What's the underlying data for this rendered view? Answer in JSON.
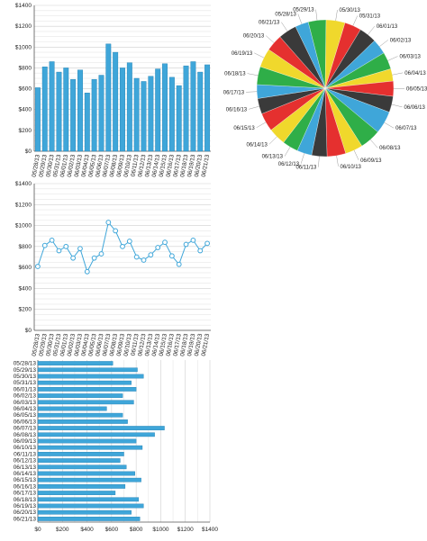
{
  "chart_data": [
    {
      "type": "bar",
      "orientation": "vertical",
      "categories": [
        "05/28/13",
        "05/29/13",
        "05/30/13",
        "05/31/13",
        "06/01/13",
        "06/02/13",
        "06/03/13",
        "06/04/13",
        "06/05/13",
        "06/06/13",
        "06/07/13",
        "06/08/13",
        "06/09/13",
        "06/10/13",
        "06/11/13",
        "06/12/13",
        "06/13/13",
        "06/14/13",
        "06/15/13",
        "06/16/13",
        "06/17/13",
        "06/18/13",
        "06/19/13",
        "06/20/13",
        "06/21/13"
      ],
      "values": [
        610,
        810,
        860,
        760,
        800,
        690,
        780,
        560,
        690,
        730,
        1030,
        950,
        800,
        850,
        700,
        670,
        720,
        790,
        840,
        710,
        630,
        820,
        860,
        760,
        830
      ],
      "ylim": [
        0,
        1400
      ],
      "yticks": [
        "$0",
        "$200",
        "$400",
        "$600",
        "$800",
        "$1000",
        "$1200",
        "$1400"
      ],
      "grid": true,
      "color": "#3fa6d9"
    },
    {
      "type": "pie",
      "categories": [
        "05/28/13",
        "05/29/13",
        "05/30/13",
        "05/31/13",
        "06/01/13",
        "06/02/13",
        "06/03/13",
        "06/04/13",
        "06/05/13",
        "06/06/13",
        "06/07/13",
        "06/08/13",
        "06/09/13",
        "06/10/13",
        "06/11/13",
        "06/12/13",
        "06/13/13",
        "06/14/13",
        "06/15/13",
        "06/16/13",
        "06/17/13",
        "06/18/13",
        "06/19/13",
        "06/20/13",
        "06/21/13"
      ],
      "values": [
        610,
        810,
        860,
        760,
        800,
        690,
        780,
        560,
        690,
        730,
        1030,
        950,
        800,
        850,
        700,
        670,
        720,
        790,
        840,
        710,
        630,
        820,
        860,
        760,
        830
      ],
      "colors": [
        "#3fa6d9",
        "#2fae48",
        "#f0d82c",
        "#e5302f",
        "#3a3a3a"
      ]
    },
    {
      "type": "line",
      "categories": [
        "05/28/13",
        "05/29/13",
        "05/30/13",
        "05/31/13",
        "06/01/13",
        "06/02/13",
        "06/03/13",
        "06/04/13",
        "06/05/13",
        "06/06/13",
        "06/07/13",
        "06/08/13",
        "06/09/13",
        "06/10/13",
        "06/11/13",
        "06/12/13",
        "06/13/13",
        "06/14/13",
        "06/15/13",
        "06/16/13",
        "06/17/13",
        "06/18/13",
        "06/19/13",
        "06/20/13",
        "06/21/13"
      ],
      "values": [
        610,
        810,
        860,
        760,
        800,
        690,
        780,
        560,
        690,
        730,
        1030,
        950,
        800,
        850,
        700,
        670,
        720,
        790,
        840,
        710,
        630,
        820,
        860,
        760,
        830
      ],
      "ylim": [
        0,
        1400
      ],
      "yticks": [
        "$0",
        "$200",
        "$400",
        "$600",
        "$800",
        "$1000",
        "$1200",
        "$1400"
      ],
      "grid": true,
      "color": "#3fa6d9"
    },
    {
      "type": "bar",
      "orientation": "horizontal",
      "categories": [
        "05/28/13",
        "05/29/13",
        "05/30/13",
        "05/31/13",
        "06/01/13",
        "06/02/13",
        "06/03/13",
        "06/04/13",
        "06/05/13",
        "06/06/13",
        "06/07/13",
        "06/08/13",
        "06/09/13",
        "06/10/13",
        "06/11/13",
        "06/12/13",
        "06/13/13",
        "06/14/13",
        "06/15/13",
        "06/16/13",
        "06/17/13",
        "06/18/13",
        "06/19/13",
        "06/20/13",
        "06/21/13"
      ],
      "values": [
        610,
        810,
        860,
        760,
        800,
        690,
        780,
        560,
        690,
        730,
        1030,
        950,
        800,
        850,
        700,
        670,
        720,
        790,
        840,
        710,
        630,
        820,
        860,
        760,
        830
      ],
      "xlim": [
        0,
        1400
      ],
      "xticks": [
        "$0",
        "$200",
        "$400",
        "$600",
        "$800",
        "$1000",
        "$1200",
        "$1400"
      ],
      "grid": true,
      "color": "#3fa6d9"
    }
  ]
}
